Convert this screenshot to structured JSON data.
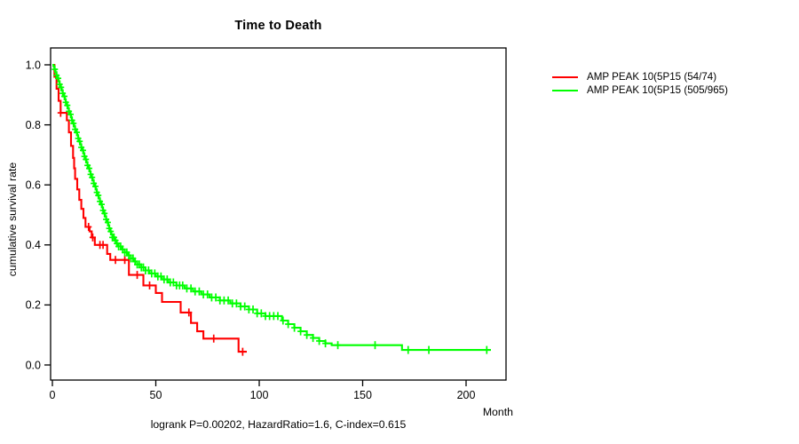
{
  "chart_data": {
    "type": "line",
    "subtype": "kaplan-meier-step",
    "title": "Time to Death",
    "xlabel": "Month",
    "ylabel": "cumulative survival rate",
    "footer": "logrank P=0.00202, HazardRatio=1.6, C-index=0.615",
    "x_ticks": [
      "0",
      "50",
      "100",
      "150",
      "200"
    ],
    "y_ticks": [
      "0.0",
      "0.2",
      "0.4",
      "0.6",
      "0.8",
      "1.0"
    ],
    "xlim": [
      -1,
      219
    ],
    "ylim": [
      -0.05,
      1.06
    ],
    "grid": false,
    "legend_position": "top-right-outside",
    "axis_color": "#000000",
    "series": [
      {
        "name": "AMP PEAK 10(5P15 (54/74)",
        "color": "#ff0000",
        "end_month": 94,
        "steps": [
          [
            0,
            1.0
          ],
          [
            1,
            0.96
          ],
          [
            2,
            0.92
          ],
          [
            3,
            0.88
          ],
          [
            4,
            0.84
          ],
          [
            7,
            0.815
          ],
          [
            8,
            0.775
          ],
          [
            9,
            0.73
          ],
          [
            10,
            0.69
          ],
          [
            10.5,
            0.655
          ],
          [
            11,
            0.62
          ],
          [
            12,
            0.585
          ],
          [
            13,
            0.55
          ],
          [
            14,
            0.52
          ],
          [
            15,
            0.49
          ],
          [
            16,
            0.46
          ],
          [
            18,
            0.445
          ],
          [
            19,
            0.425
          ],
          [
            20.5,
            0.4
          ],
          [
            26.5,
            0.37
          ],
          [
            28,
            0.35
          ],
          [
            37,
            0.3
          ],
          [
            44,
            0.265
          ],
          [
            50,
            0.24
          ],
          [
            53,
            0.21
          ],
          [
            62,
            0.175
          ],
          [
            67,
            0.14
          ],
          [
            70,
            0.112
          ],
          [
            73,
            0.088
          ],
          [
            90,
            0.044
          ]
        ],
        "censor_months": [
          4,
          17.5,
          19.5,
          23,
          24.5,
          30.5,
          35,
          41,
          47,
          66,
          78,
          92
        ]
      },
      {
        "name": "AMP PEAK 10(5P15 (505/965)",
        "color": "#00ff00",
        "end_month": 212,
        "steps": [
          [
            0,
            1.0
          ],
          [
            0.5,
            0.995
          ],
          [
            1,
            0.985
          ],
          [
            1.5,
            0.975
          ],
          [
            2,
            0.965
          ],
          [
            2.5,
            0.955
          ],
          [
            3,
            0.945
          ],
          [
            3.5,
            0.935
          ],
          [
            4,
            0.925
          ],
          [
            4.5,
            0.915
          ],
          [
            5,
            0.905
          ],
          [
            5.5,
            0.895
          ],
          [
            6,
            0.885
          ],
          [
            6.5,
            0.875
          ],
          [
            7,
            0.865
          ],
          [
            7.5,
            0.855
          ],
          [
            8,
            0.845
          ],
          [
            8.5,
            0.835
          ],
          [
            9,
            0.825
          ],
          [
            9.5,
            0.815
          ],
          [
            10,
            0.805
          ],
          [
            10.5,
            0.795
          ],
          [
            11,
            0.785
          ],
          [
            11.5,
            0.775
          ],
          [
            12,
            0.765
          ],
          [
            12.5,
            0.755
          ],
          [
            13,
            0.745
          ],
          [
            13.5,
            0.735
          ],
          [
            14,
            0.725
          ],
          [
            14.5,
            0.715
          ],
          [
            15,
            0.705
          ],
          [
            15.5,
            0.695
          ],
          [
            16,
            0.685
          ],
          [
            16.5,
            0.675
          ],
          [
            17,
            0.665
          ],
          [
            17.5,
            0.655
          ],
          [
            18,
            0.645
          ],
          [
            18.5,
            0.635
          ],
          [
            19,
            0.625
          ],
          [
            19.5,
            0.615
          ],
          [
            20,
            0.605
          ],
          [
            20.5,
            0.595
          ],
          [
            21,
            0.585
          ],
          [
            21.5,
            0.575
          ],
          [
            22,
            0.565
          ],
          [
            22.5,
            0.555
          ],
          [
            23,
            0.545
          ],
          [
            23.5,
            0.535
          ],
          [
            24,
            0.525
          ],
          [
            24.5,
            0.515
          ],
          [
            25,
            0.505
          ],
          [
            25.5,
            0.495
          ],
          [
            26,
            0.485
          ],
          [
            26.5,
            0.475
          ],
          [
            27,
            0.465
          ],
          [
            27.5,
            0.455
          ],
          [
            28,
            0.445
          ],
          [
            28.5,
            0.435
          ],
          [
            29,
            0.425
          ],
          [
            30,
            0.415
          ],
          [
            31,
            0.405
          ],
          [
            32,
            0.395
          ],
          [
            33.5,
            0.385
          ],
          [
            35,
            0.375
          ],
          [
            36.5,
            0.365
          ],
          [
            38,
            0.355
          ],
          [
            39.5,
            0.345
          ],
          [
            41,
            0.335
          ],
          [
            43,
            0.325
          ],
          [
            45,
            0.315
          ],
          [
            47,
            0.305
          ],
          [
            50,
            0.295
          ],
          [
            53,
            0.285
          ],
          [
            56,
            0.275
          ],
          [
            60,
            0.265
          ],
          [
            64,
            0.255
          ],
          [
            68,
            0.245
          ],
          [
            72,
            0.235
          ],
          [
            76,
            0.225
          ],
          [
            81,
            0.215
          ],
          [
            86,
            0.205
          ],
          [
            91,
            0.195
          ],
          [
            95,
            0.185
          ],
          [
            99,
            0.172
          ],
          [
            103,
            0.163
          ],
          [
            111,
            0.148
          ],
          [
            114,
            0.136
          ],
          [
            117,
            0.124
          ],
          [
            120,
            0.112
          ],
          [
            123,
            0.1
          ],
          [
            126,
            0.09
          ],
          [
            129,
            0.08
          ],
          [
            132,
            0.072
          ],
          [
            135,
            0.066
          ],
          [
            169,
            0.05
          ]
        ],
        "censor_months": [
          1.2,
          2,
          2.8,
          3.5,
          4.2,
          5,
          5.8,
          6.5,
          7.2,
          8,
          8.8,
          9.5,
          10.2,
          11,
          11.8,
          12.5,
          13.2,
          14,
          14.8,
          15.5,
          16.2,
          17,
          17.8,
          18.5,
          19.2,
          20,
          20.8,
          21.5,
          22.2,
          23,
          23.8,
          24.5,
          25.2,
          26,
          26.8,
          27.5,
          28.2,
          29,
          29.8,
          30.5,
          31.2,
          32,
          33,
          34,
          35,
          36,
          37,
          38,
          39,
          40,
          41,
          42,
          43,
          44,
          45,
          46.5,
          48,
          49.5,
          51,
          52.5,
          54,
          55.5,
          57,
          58.5,
          60,
          61.5,
          63,
          65,
          67,
          69,
          71,
          73,
          75,
          77,
          79,
          81,
          83,
          85,
          87,
          89,
          91,
          93,
          95,
          97,
          99,
          101,
          103,
          105,
          107,
          109,
          111.5,
          114,
          117,
          120,
          123,
          126,
          129,
          132,
          138,
          156,
          172,
          182,
          210
        ]
      }
    ]
  }
}
